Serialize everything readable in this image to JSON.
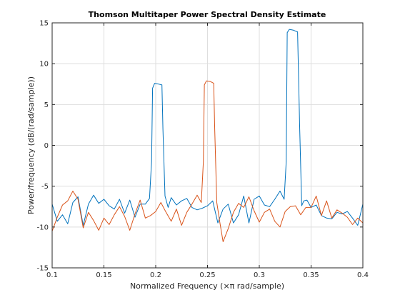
{
  "chart_data": {
    "type": "line",
    "title": "Thomson Multitaper Power Spectral Density Estimate",
    "xlabel": "Normalized Frequency  (×π rad/sample)",
    "ylabel": "Power/frequency (dB/(rad/sample))",
    "xlim": [
      0.1,
      0.4
    ],
    "ylim": [
      -15,
      15
    ],
    "x_ticks": [
      0.1,
      0.15,
      0.2,
      0.25,
      0.3,
      0.35,
      0.4
    ],
    "x_tick_labels": [
      "0.1",
      "0.15",
      "0.2",
      "0.25",
      "0.3",
      "0.35",
      "0.4"
    ],
    "y_ticks": [
      -15,
      -10,
      -5,
      0,
      5,
      10,
      15
    ],
    "y_tick_labels": [
      "-15",
      "-10",
      "-5",
      "0",
      "5",
      "10",
      "15"
    ],
    "grid": true,
    "legend": "none",
    "series": [
      {
        "color": "#0072bd",
        "x": [
          0.1,
          0.105,
          0.11,
          0.115,
          0.12,
          0.125,
          0.13,
          0.135,
          0.14,
          0.145,
          0.15,
          0.155,
          0.16,
          0.165,
          0.17,
          0.175,
          0.18,
          0.185,
          0.19,
          0.194,
          0.196,
          0.197,
          0.199,
          0.203,
          0.206,
          0.207,
          0.209,
          0.212,
          0.215,
          0.22,
          0.225,
          0.23,
          0.235,
          0.24,
          0.245,
          0.25,
          0.255,
          0.26,
          0.265,
          0.27,
          0.275,
          0.28,
          0.285,
          0.29,
          0.295,
          0.3,
          0.305,
          0.31,
          0.315,
          0.32,
          0.324,
          0.326,
          0.327,
          0.329,
          0.333,
          0.337,
          0.339,
          0.341,
          0.343,
          0.346,
          0.35,
          0.355,
          0.36,
          0.365,
          0.37,
          0.375,
          0.38,
          0.385,
          0.39,
          0.395,
          0.4
        ],
        "y": [
          -7.2,
          -9.3,
          -8.5,
          -9.6,
          -7.0,
          -6.3,
          -9.8,
          -7.2,
          -6.1,
          -7.1,
          -6.6,
          -7.4,
          -7.8,
          -6.6,
          -8.3,
          -6.7,
          -8.8,
          -7.2,
          -7.2,
          -6.5,
          -2.0,
          7.0,
          7.6,
          7.5,
          7.4,
          2.0,
          -6.2,
          -7.6,
          -6.4,
          -7.3,
          -6.8,
          -6.5,
          -7.6,
          -7.9,
          -7.7,
          -7.4,
          -6.8,
          -9.5,
          -7.8,
          -7.2,
          -9.5,
          -8.5,
          -6.2,
          -9.5,
          -6.6,
          -6.2,
          -7.3,
          -7.5,
          -6.6,
          -5.6,
          -6.6,
          -2.0,
          13.8,
          14.2,
          14.1,
          13.9,
          2.0,
          -7.4,
          -6.8,
          -6.7,
          -7.6,
          -7.3,
          -8.6,
          -8.9,
          -9.0,
          -8.2,
          -8.4,
          -8.1,
          -8.9,
          -9.8,
          -7.2
        ]
      },
      {
        "color": "#d95319",
        "x": [
          0.1,
          0.105,
          0.11,
          0.115,
          0.12,
          0.125,
          0.13,
          0.135,
          0.14,
          0.145,
          0.15,
          0.155,
          0.16,
          0.165,
          0.17,
          0.175,
          0.18,
          0.185,
          0.19,
          0.195,
          0.2,
          0.205,
          0.21,
          0.215,
          0.22,
          0.225,
          0.23,
          0.235,
          0.24,
          0.244,
          0.246,
          0.247,
          0.249,
          0.253,
          0.256,
          0.257,
          0.259,
          0.262,
          0.265,
          0.27,
          0.275,
          0.28,
          0.285,
          0.29,
          0.295,
          0.3,
          0.305,
          0.31,
          0.315,
          0.32,
          0.325,
          0.33,
          0.335,
          0.34,
          0.345,
          0.35,
          0.355,
          0.36,
          0.365,
          0.37,
          0.375,
          0.38,
          0.385,
          0.39,
          0.395,
          0.4
        ],
        "y": [
          -10.5,
          -8.8,
          -7.3,
          -6.8,
          -5.6,
          -6.6,
          -10.1,
          -8.2,
          -9.2,
          -10.4,
          -8.9,
          -9.7,
          -8.5,
          -7.5,
          -8.7,
          -10.4,
          -8.4,
          -6.7,
          -8.9,
          -8.6,
          -8.1,
          -7.0,
          -8.2,
          -9.3,
          -7.8,
          -9.8,
          -8.2,
          -7.2,
          -6.1,
          -7.0,
          -2.0,
          7.4,
          7.9,
          7.8,
          7.6,
          2.0,
          -7.0,
          -9.5,
          -11.8,
          -10.2,
          -8.2,
          -7.1,
          -7.6,
          -6.3,
          -8.0,
          -9.4,
          -8.2,
          -7.8,
          -9.3,
          -10.0,
          -8.1,
          -7.5,
          -7.4,
          -8.5,
          -7.6,
          -7.6,
          -6.2,
          -8.6,
          -6.8,
          -8.9,
          -7.9,
          -8.3,
          -8.8,
          -9.7,
          -8.9,
          -9.5
        ]
      }
    ]
  }
}
